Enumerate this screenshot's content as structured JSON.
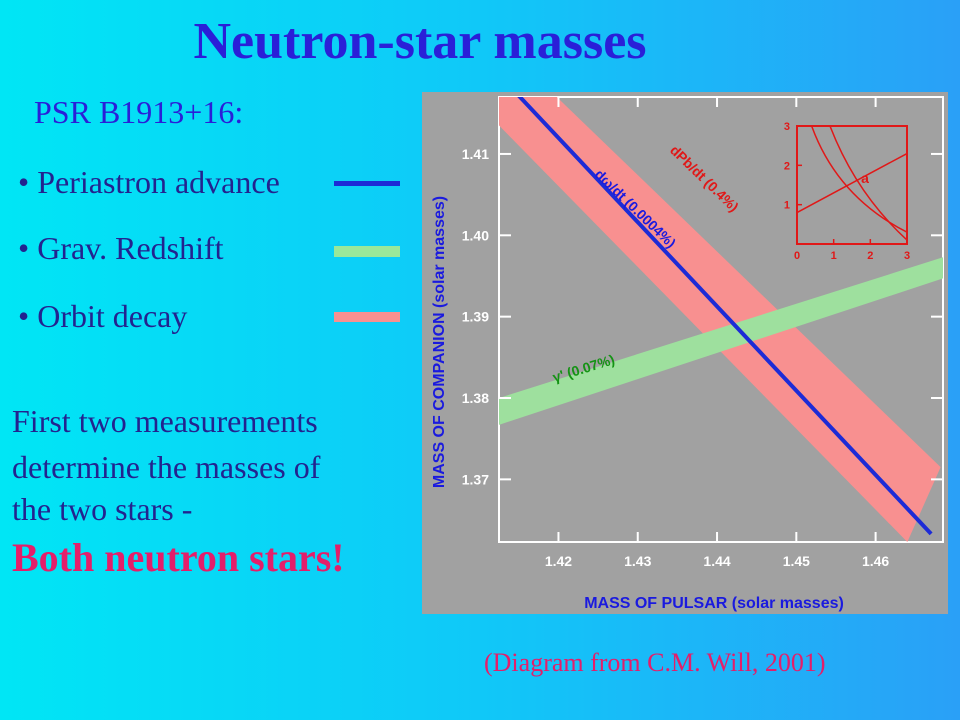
{
  "slide": {
    "title": "Neutron-star masses",
    "subtitle": "PSR B1913+16:",
    "legend": [
      {
        "label": "• Periastron advance",
        "color": "#1d2bd6"
      },
      {
        "label": "• Grav. Redshift",
        "color": "#9ae89a"
      },
      {
        "label": "• Orbit decay",
        "color": "#f89090"
      }
    ],
    "paragraph": [
      "First two measurements",
      "determine the masses of",
      "the two stars -"
    ],
    "conclusion": "Both neutron stars!",
    "caption": "(Diagram from C.M. Will, 2001)"
  },
  "chart_data": {
    "type": "line",
    "xlabel": "MASS OF PULSAR (solar masses)",
    "ylabel": "MASS OF COMPANION (solar masses)",
    "xticks": [
      "1.42",
      "1.43",
      "1.44",
      "1.45",
      "1.46"
    ],
    "yticks": [
      "1.41",
      "1.40",
      "1.39",
      "1.38",
      "1.37"
    ],
    "xlim": [
      1.4125,
      1.4685
    ],
    "ylim": [
      1.3623,
      1.417
    ],
    "series": [
      {
        "label": "dω/dt (0.0004%)",
        "kind": "line",
        "color": "#1d2bd6",
        "points": [
          [
            1.4137,
            1.4185
          ],
          [
            1.467,
            1.3633
          ]
        ]
      },
      {
        "label": "dP_b/dt (0.4%)",
        "kind": "band",
        "color": "#f89090",
        "upper": [
          [
            1.415,
            1.4215
          ],
          [
            1.4682,
            1.3715
          ]
        ],
        "lower": [
          [
            1.411,
            1.415
          ],
          [
            1.464,
            1.3623
          ]
        ]
      },
      {
        "label": "γ' (0.07%)",
        "kind": "band",
        "color": "#9ee09e",
        "upper": [
          [
            1.4125,
            1.38
          ],
          [
            1.4685,
            1.3973
          ]
        ],
        "lower": [
          [
            1.4125,
            1.3767
          ],
          [
            1.4685,
            1.3947
          ]
        ]
      }
    ],
    "inset": {
      "label": "a",
      "xticks": [
        "0",
        "1",
        "2",
        "3"
      ],
      "yticks": [
        "1",
        "2",
        "3"
      ],
      "xlim": [
        0,
        3
      ],
      "ylim": [
        0,
        3
      ]
    },
    "colors": {
      "plot_bg": "#a1a1a1",
      "axis_label": "#1a1adf",
      "tick_label": "#ffffff",
      "blue_label": "#1a1adf",
      "red_label": "#e01818",
      "green_label": "#149314"
    }
  }
}
